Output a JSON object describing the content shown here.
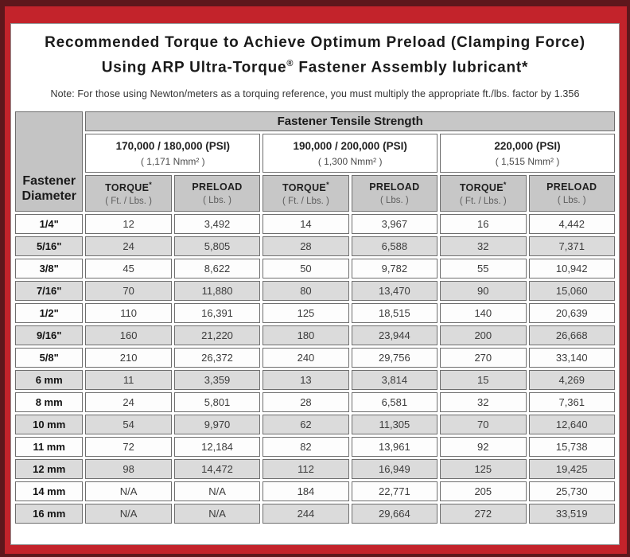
{
  "page": {
    "title_line1": "Recommended Torque to Achieve Optimum Preload (Clamping Force)",
    "title_line2_pre": "Using ARP Ultra-Torque",
    "title_line2_sup": "®",
    "title_line2_post": " Fastener Assembly lubricant*",
    "note": "Note: For those using Newton/meters as a torquing reference, you must multiply the appropriate ft./lbs. factor by 1.356"
  },
  "colors": {
    "frame_red": "#C3232B",
    "frame_maroon": "#5E171C",
    "header_gray": "#C7C7C7",
    "row_alt_gray": "#DBDBDB"
  },
  "table": {
    "group_header": "Fastener Tensile Strength",
    "diameter_header_line1": "Fastener",
    "diameter_header_line2": "Diameter",
    "strength_groups": [
      {
        "psi": "170,000 / 180,000 (PSI)",
        "nmm": "( 1,171 Nmm² )"
      },
      {
        "psi": "190,000 / 200,000 (PSI)",
        "nmm": "( 1,300 Nmm² )"
      },
      {
        "psi": "220,000 (PSI)",
        "nmm": "( 1,515 Nmm² )"
      }
    ],
    "column_headers": {
      "torque_label": "TORQUE",
      "torque_sup": "*",
      "torque_unit": "( Ft. / Lbs. )",
      "preload_label": "PRELOAD",
      "preload_unit": "( Lbs. )"
    },
    "rows": [
      {
        "diameter": "1/4\"",
        "values": [
          "12",
          "3,492",
          "14",
          "3,967",
          "16",
          "4,442"
        ]
      },
      {
        "diameter": "5/16\"",
        "values": [
          "24",
          "5,805",
          "28",
          "6,588",
          "32",
          "7,371"
        ]
      },
      {
        "diameter": "3/8\"",
        "values": [
          "45",
          "8,622",
          "50",
          "9,782",
          "55",
          "10,942"
        ]
      },
      {
        "diameter": "7/16\"",
        "values": [
          "70",
          "11,880",
          "80",
          "13,470",
          "90",
          "15,060"
        ]
      },
      {
        "diameter": "1/2\"",
        "values": [
          "110",
          "16,391",
          "125",
          "18,515",
          "140",
          "20,639"
        ]
      },
      {
        "diameter": "9/16\"",
        "values": [
          "160",
          "21,220",
          "180",
          "23,944",
          "200",
          "26,668"
        ]
      },
      {
        "diameter": "5/8\"",
        "values": [
          "210",
          "26,372",
          "240",
          "29,756",
          "270",
          "33,140"
        ]
      },
      {
        "diameter": "6 mm",
        "values": [
          "11",
          "3,359",
          "13",
          "3,814",
          "15",
          "4,269"
        ]
      },
      {
        "diameter": "8 mm",
        "values": [
          "24",
          "5,801",
          "28",
          "6,581",
          "32",
          "7,361"
        ]
      },
      {
        "diameter": "10 mm",
        "values": [
          "54",
          "9,970",
          "62",
          "11,305",
          "70",
          "12,640"
        ]
      },
      {
        "diameter": "11 mm",
        "values": [
          "72",
          "12,184",
          "82",
          "13,961",
          "92",
          "15,738"
        ]
      },
      {
        "diameter": "12 mm",
        "values": [
          "98",
          "14,472",
          "112",
          "16,949",
          "125",
          "19,425"
        ]
      },
      {
        "diameter": "14 mm",
        "values": [
          "N/A",
          "N/A",
          "184",
          "22,771",
          "205",
          "25,730"
        ]
      },
      {
        "diameter": "16 mm",
        "values": [
          "N/A",
          "N/A",
          "244",
          "29,664",
          "272",
          "33,519"
        ]
      }
    ]
  }
}
